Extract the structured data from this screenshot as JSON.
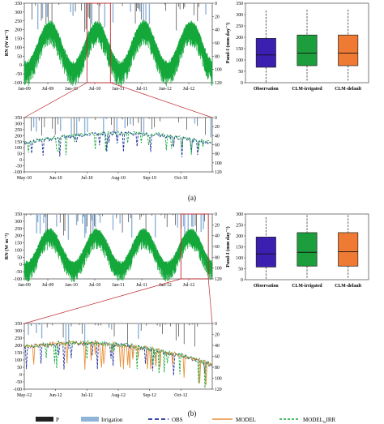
{
  "panel_labels": {
    "a": "(a)",
    "b": "(b)"
  },
  "colors": {
    "rain": "#222222",
    "irrigation": "#8fb3d9",
    "obs": "#1f2f9a",
    "model": "#e8913a",
    "model_irr": "#14a83b",
    "zoom_box": "#c0282d",
    "box_observation": "#3a1fb0",
    "box_irrigated": "#1d9e3c",
    "box_default": "#ef7a34"
  },
  "legend": {
    "p": "P",
    "irrigation": "Irrigation",
    "obs": "OBS",
    "model": "MODEL",
    "model_irr_main": "MODEL",
    "model_irr_sub": "w",
    "model_irr_tail": "IRR"
  },
  "chart_data": [
    {
      "id": "a-top",
      "type": "line",
      "ylabel": "RN (W m⁻²)",
      "ylim": [
        -100,
        350
      ],
      "yticks": [
        -100,
        -50,
        0,
        50,
        100,
        150,
        200,
        250,
        300,
        350
      ],
      "y2lim": [
        0,
        120
      ],
      "y2ticks": [
        0,
        20,
        40,
        60,
        80,
        100,
        120
      ],
      "xlim": [
        0,
        48
      ],
      "xticks": [
        {
          "x": 0,
          "label": "Jan-09"
        },
        {
          "x": 6,
          "label": "Jul-09"
        },
        {
          "x": 12,
          "label": "Jan-10"
        },
        {
          "x": 18,
          "label": "Jul-10"
        },
        {
          "x": 24,
          "label": "Jan-11"
        },
        {
          "x": 30,
          "label": "Jul-11"
        },
        {
          "x": 36,
          "label": "Jan-12"
        },
        {
          "x": 42,
          "label": "Jul-12"
        }
      ],
      "zoom_range": [
        16,
        22
      ],
      "series": [
        {
          "name": "OBS"
        },
        {
          "name": "MODEL"
        },
        {
          "name": "MODEL_IRR"
        }
      ]
    },
    {
      "id": "a-zoom",
      "type": "line",
      "ylim": [
        -100,
        350
      ],
      "yticks": [
        -100,
        -50,
        0,
        50,
        100,
        150,
        200,
        250,
        300,
        350
      ],
      "y2lim": [
        0,
        120
      ],
      "y2ticks": [
        0,
        20,
        40,
        60,
        80,
        100,
        120
      ],
      "xlim": [
        0,
        6
      ],
      "xticks": [
        {
          "x": 0,
          "label": "May-10"
        },
        {
          "x": 1,
          "label": "Jun-10"
        },
        {
          "x": 2,
          "label": "Jul-10"
        },
        {
          "x": 3,
          "label": "Aug-10"
        },
        {
          "x": 4,
          "label": "Sep-10"
        },
        {
          "x": 5,
          "label": "Oct-10"
        }
      ]
    },
    {
      "id": "a-box",
      "type": "box",
      "ylabel": "Pand-I (mm day⁻¹)",
      "ylim": [
        0,
        350
      ],
      "categories": [
        "Observation",
        "CLM-irrigated",
        "CLM-default"
      ],
      "boxes": [
        {
          "min": 0,
          "q1": 68,
          "median": 122,
          "q3": 195,
          "max": 318
        },
        {
          "min": 5,
          "q1": 75,
          "median": 130,
          "q3": 210,
          "max": 322
        },
        {
          "min": 5,
          "q1": 75,
          "median": 130,
          "q3": 210,
          "max": 322
        }
      ]
    },
    {
      "id": "b-top",
      "type": "line",
      "ylabel": "RN (W m⁻²)",
      "ylim": [
        -100,
        350
      ],
      "yticks": [
        -100,
        -50,
        0,
        50,
        100,
        150,
        200,
        250,
        300,
        350
      ],
      "y2lim": [
        0,
        120
      ],
      "y2ticks": [
        0,
        20,
        40,
        60,
        80,
        100,
        120
      ],
      "xlim": [
        0,
        48
      ],
      "xticks": [
        {
          "x": 0,
          "label": "Jan-09"
        },
        {
          "x": 6,
          "label": "Jul-09"
        },
        {
          "x": 12,
          "label": "Jan-10"
        },
        {
          "x": 18,
          "label": "Jul-10"
        },
        {
          "x": 24,
          "label": "Jan-11"
        },
        {
          "x": 30,
          "label": "Jul-11"
        },
        {
          "x": 36,
          "label": "Jan-12"
        },
        {
          "x": 42,
          "label": "Jul-12"
        }
      ],
      "zoom_range": [
        40,
        47
      ]
    },
    {
      "id": "b-zoom",
      "type": "line",
      "ylim": [
        -100,
        350
      ],
      "yticks": [
        -100,
        -50,
        0,
        50,
        100,
        150,
        200,
        250,
        300,
        350
      ],
      "y2lim": [
        0,
        120
      ],
      "y2ticks": [
        0,
        20,
        40,
        60,
        80,
        100,
        120
      ],
      "xlim": [
        0,
        6
      ],
      "xticks": [
        {
          "x": 0,
          "label": "May-12"
        },
        {
          "x": 1,
          "label": "Jun-12"
        },
        {
          "x": 2,
          "label": "Jul-12"
        },
        {
          "x": 3,
          "label": "Aug-12"
        },
        {
          "x": 4,
          "label": "Sep-12"
        },
        {
          "x": 5,
          "label": "Oct-12"
        }
      ]
    },
    {
      "id": "b-box",
      "type": "box",
      "ylabel": "Pand-I (mm day⁻¹)",
      "ylim": [
        0,
        300
      ],
      "categories": [
        "Observation",
        "CLM-irrigated",
        "CLM-default"
      ],
      "boxes": [
        {
          "min": 0,
          "q1": 58,
          "median": 118,
          "q3": 195,
          "max": 285
        },
        {
          "min": 5,
          "q1": 62,
          "median": 125,
          "q3": 215,
          "max": 295
        },
        {
          "min": 5,
          "q1": 62,
          "median": 128,
          "q3": 215,
          "max": 295
        }
      ]
    }
  ]
}
